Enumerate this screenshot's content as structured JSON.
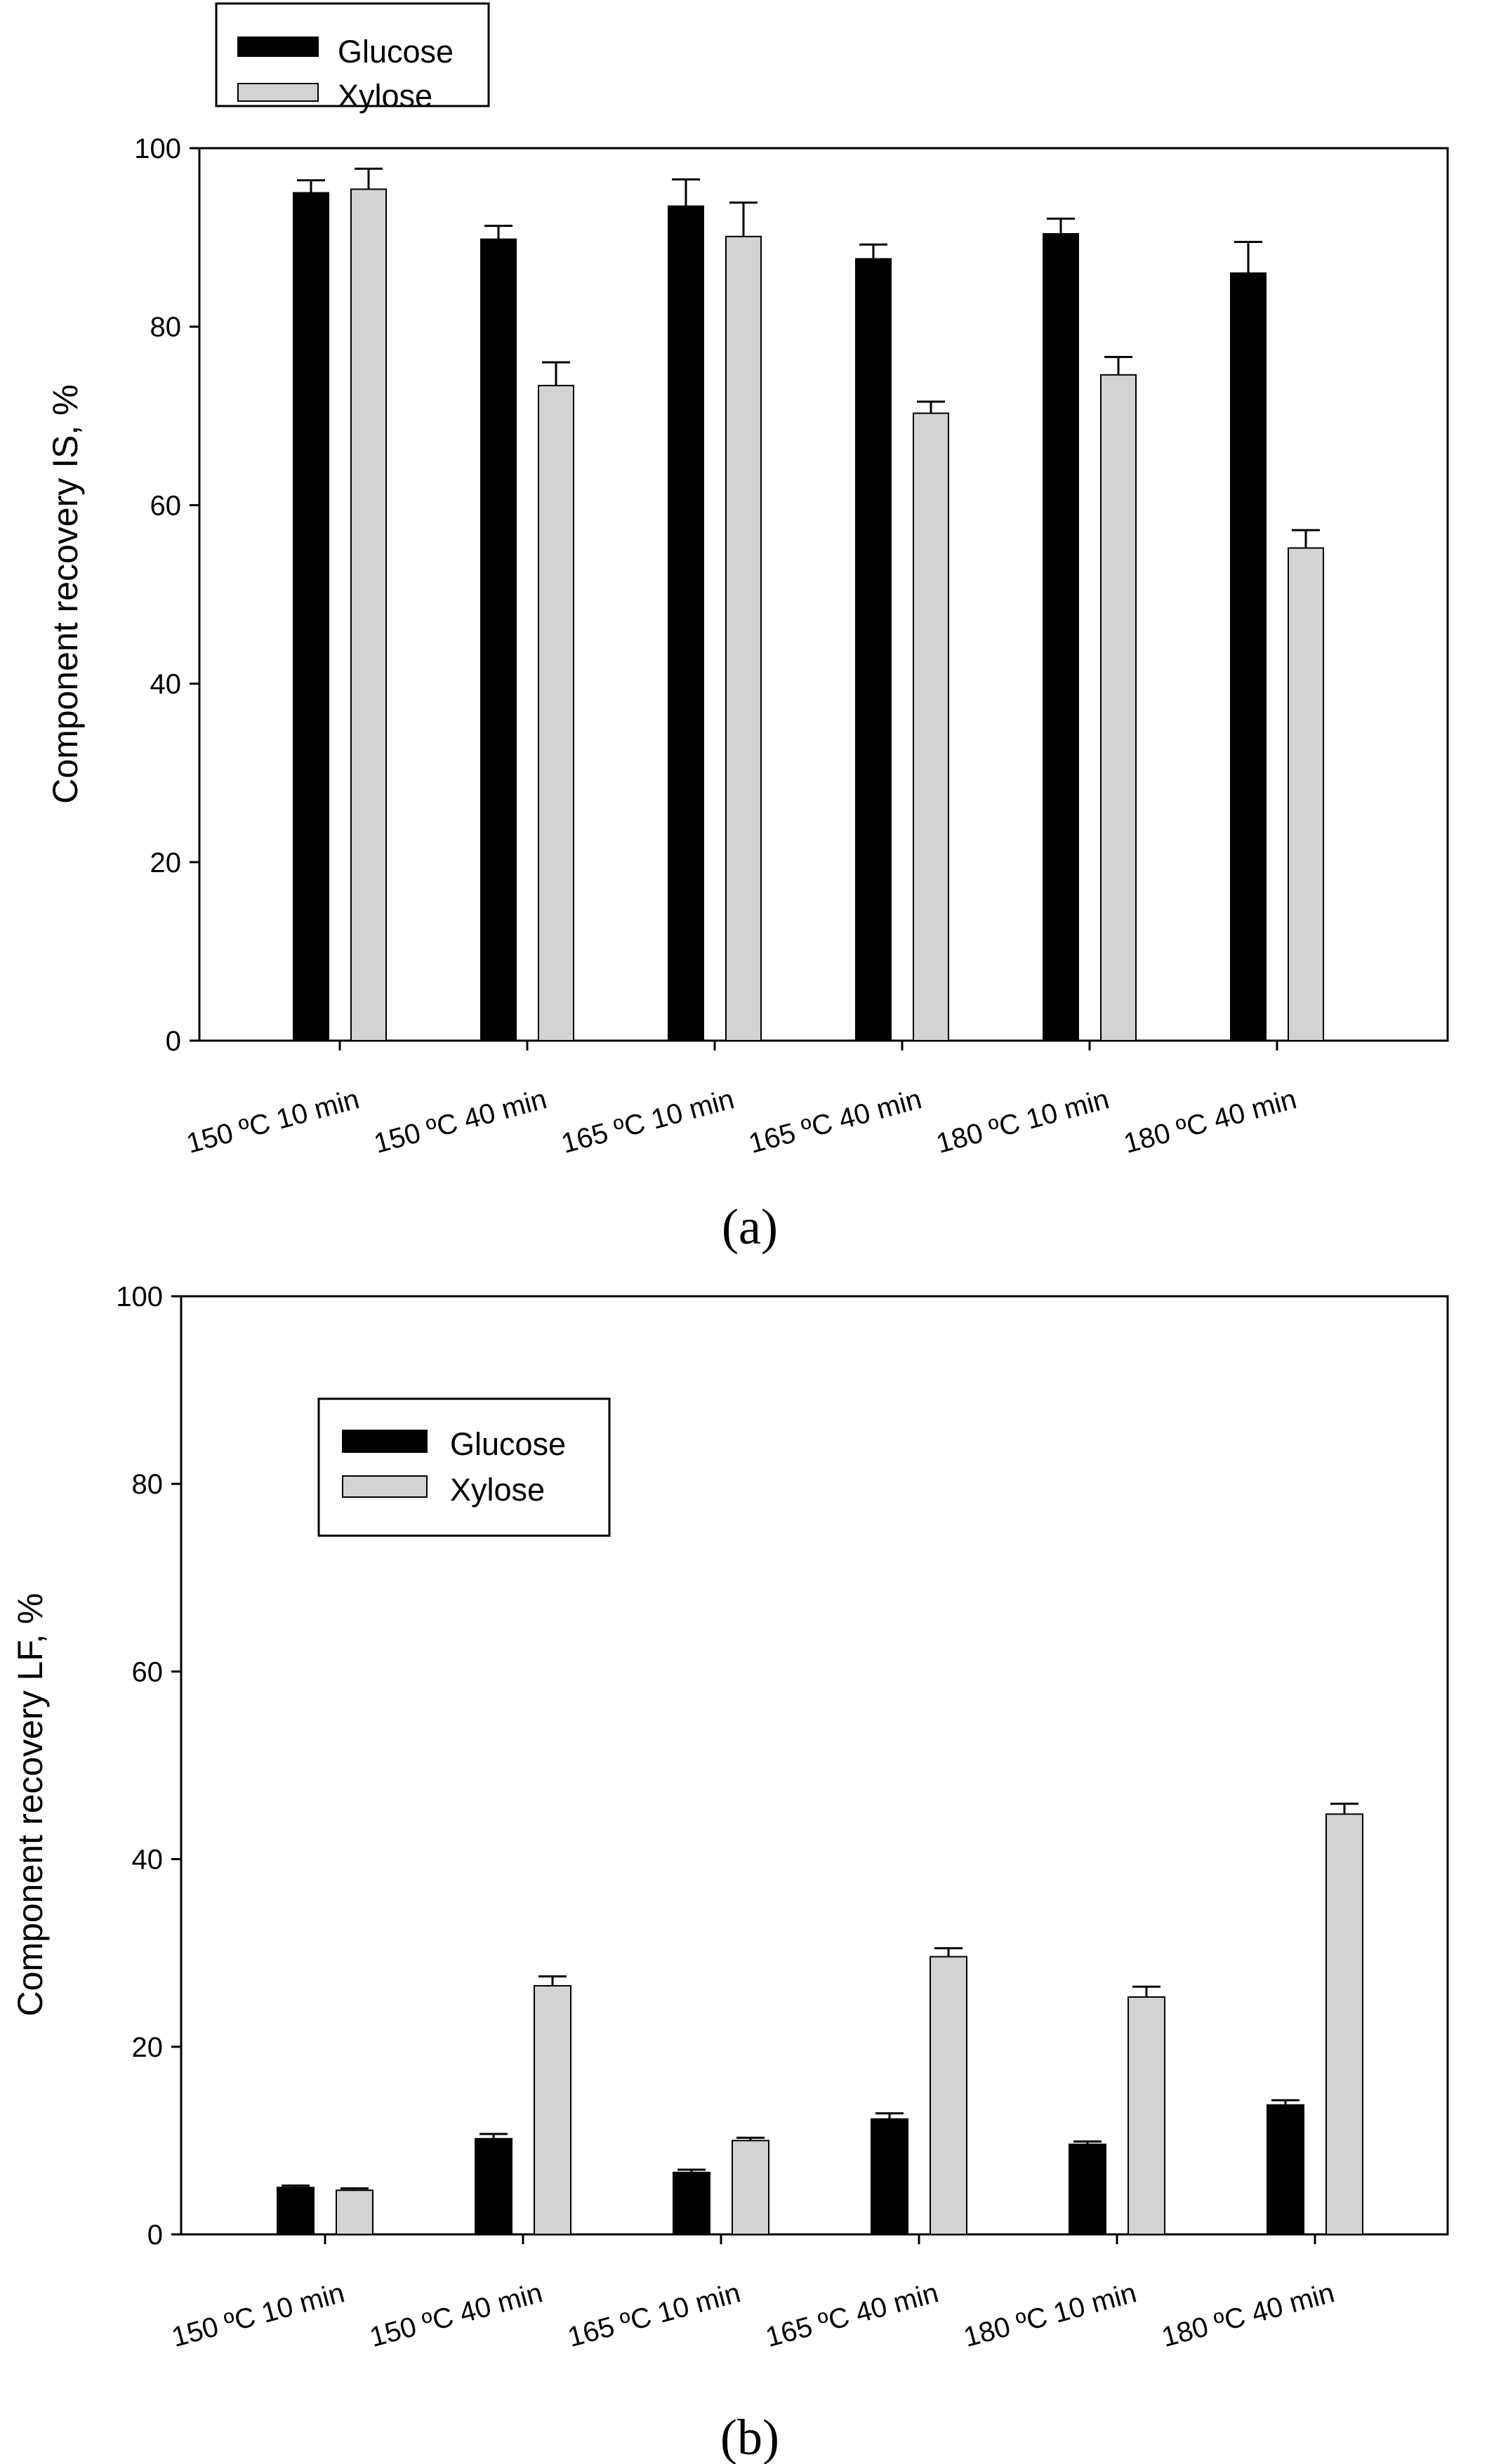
{
  "colors": {
    "glucose": "#000000",
    "xylose": "#d3d3d3",
    "axis": "#000000",
    "background": "#ffffff"
  },
  "chart_data": [
    {
      "type": "bar",
      "panel_label": "(a)",
      "title": "",
      "xlabel": "",
      "ylabel": "Component recovery IS, %",
      "ylim": [
        0,
        100
      ],
      "yticks": [
        "0",
        "20",
        "40",
        "60",
        "80",
        "100"
      ],
      "categories": [
        "150 ºC 10 min",
        "150 ºC 40 min",
        "165 ºC 10 min",
        "165 ºC 40 min",
        "180 ºC 10 min",
        "180 ºC 40 min"
      ],
      "legend": {
        "position": "top-left",
        "entries": [
          "Glucose",
          "Xylose"
        ]
      },
      "series": [
        {
          "name": "Glucose",
          "values": [
            95.0,
            89.8,
            93.5,
            87.6,
            90.4,
            86.0
          ],
          "errors": [
            1.4,
            1.5,
            3.0,
            1.6,
            1.7,
            3.5
          ]
        },
        {
          "name": "Xylose",
          "values": [
            95.4,
            73.4,
            90.1,
            70.3,
            74.6,
            55.2
          ],
          "errors": [
            2.3,
            2.6,
            3.8,
            1.3,
            2.0,
            2.0
          ]
        }
      ]
    },
    {
      "type": "bar",
      "panel_label": "(b)",
      "title": "",
      "xlabel": "",
      "ylabel": "Component recovery LF, %",
      "ylim": [
        0,
        100
      ],
      "yticks": [
        "0",
        "20",
        "40",
        "60",
        "80",
        "100"
      ],
      "categories": [
        "150 ºC 10 min",
        "150 ºC 40 min",
        "165 ºC 10 min",
        "165 ºC 40 min",
        "180 ºC 10 min",
        "180 ºC 40 min"
      ],
      "legend": {
        "position": "top-left",
        "entries": [
          "Glucose",
          "Xylose"
        ]
      },
      "series": [
        {
          "name": "Glucose",
          "values": [
            5.0,
            10.2,
            6.6,
            12.3,
            9.6,
            13.8
          ],
          "errors": [
            0.2,
            0.5,
            0.3,
            0.6,
            0.3,
            0.5
          ]
        },
        {
          "name": "Xylose",
          "values": [
            4.7,
            26.5,
            10.0,
            29.6,
            25.3,
            44.8
          ],
          "errors": [
            0.2,
            1.0,
            0.3,
            0.9,
            1.1,
            1.1
          ]
        }
      ]
    }
  ]
}
